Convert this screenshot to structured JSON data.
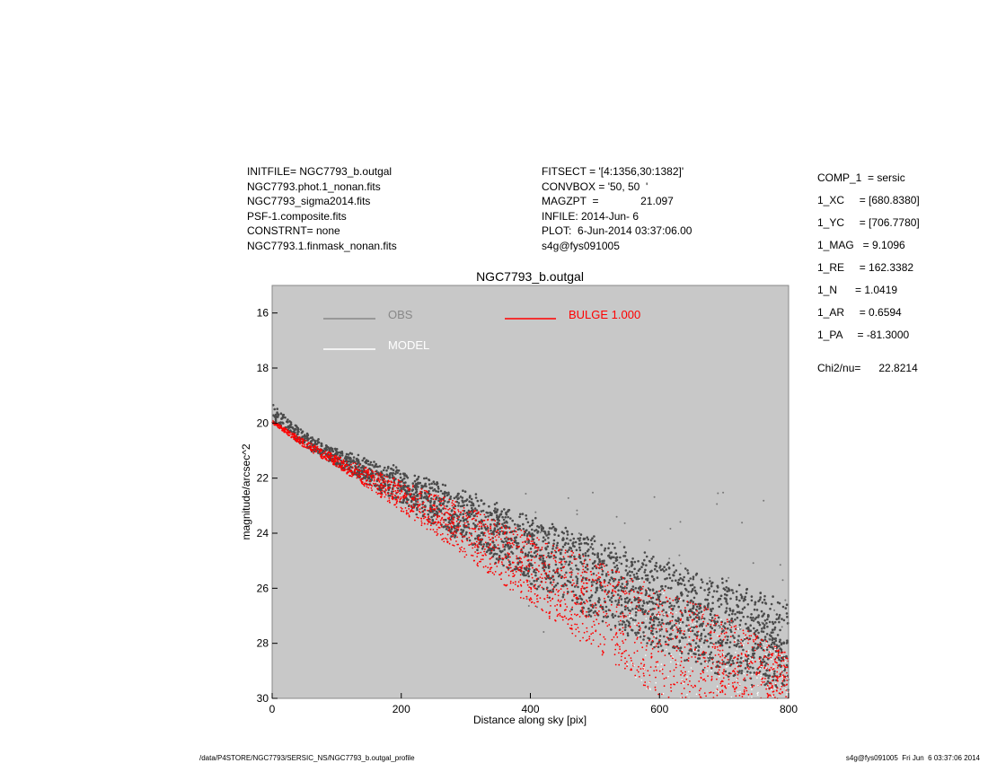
{
  "header": {
    "left_lines": [
      "INITFILE= NGC7793_b.outgal",
      "NGC7793.phot.1_nonan.fits",
      "NGC7793_sigma2014.fits",
      "PSF-1.composite.fits",
      "CONSTRNT= none",
      "NGC7793.1.finmask_nonan.fits"
    ],
    "mid_lines": [
      "FITSECT = '[4:1356,30:1382]'",
      "CONVBOX = '50, 50  '",
      "MAGZPT  =              21.097",
      "INFILE: 2014-Jun- 6",
      "PLOT:  6-Jun-2014 03:37:06.00",
      "s4g@fys091005"
    ]
  },
  "components": [
    "COMP_1  = sersic",
    "1_XC     = [680.8380]",
    "1_YC     = [706.7780]",
    "1_MAG   = 9.1096",
    "1_RE     = 162.3382",
    "1_N      = 1.0419",
    "1_AR     = 0.6594",
    "1_PA     = -81.3000"
  ],
  "chi2": "Chi2/nu=      22.8214",
  "footer": {
    "left": "/data/P4STORE/NGC7793/SERSIC_NS/NGC7793_b.outgal_profile",
    "right": "s4g@fys091005  Fri Jun  6 03:37:06 2014"
  },
  "chart_data": {
    "type": "scatter",
    "title": "NGC7793_b.outgal",
    "xlabel": "Distance along sky [pix]",
    "ylabel": "magnitude/arcsec^2",
    "xlim": [
      0,
      800
    ],
    "ylim": [
      15,
      30
    ],
    "y_inverted": true,
    "xticks": [
      0,
      200,
      400,
      600,
      800
    ],
    "xtick_labels": [
      "0",
      "200",
      "400",
      "600",
      "800"
    ],
    "yticks": [
      16,
      18,
      20,
      22,
      24,
      26,
      28,
      30
    ],
    "ytick_labels": [
      "16",
      "18",
      "20",
      "22",
      "24",
      "26",
      "28",
      "30"
    ],
    "legend": [
      {
        "label": "OBS",
        "color": "#888888"
      },
      {
        "label": "BULGE  1.000",
        "color": "#ff0000"
      },
      {
        "label": "MODEL",
        "color": "#ffffff"
      }
    ],
    "background": "#c8c8c8",
    "series": [
      {
        "name": "OBS",
        "color": "#4a4a4a",
        "envelope_x": [
          0,
          50,
          100,
          200,
          300,
          400,
          500,
          600,
          700,
          800
        ],
        "envelope_upper": [
          19.3,
          20.3,
          20.9,
          21.6,
          22.4,
          23.2,
          24.1,
          24.8,
          25.6,
          26.3
        ],
        "envelope_lower": [
          20.0,
          20.9,
          21.6,
          23.0,
          24.5,
          26.0,
          27.3,
          28.4,
          29.4,
          30.0
        ]
      },
      {
        "name": "BULGE  1.000",
        "color": "#ff0000",
        "envelope_x": [
          0,
          50,
          100,
          200,
          300,
          400,
          500,
          600,
          700,
          800
        ],
        "envelope_upper": [
          19.9,
          20.6,
          21.2,
          22.1,
          23.0,
          24.0,
          25.0,
          26.0,
          27.0,
          28.4
        ],
        "envelope_lower": [
          20.0,
          20.9,
          21.6,
          23.2,
          24.9,
          26.6,
          28.3,
          30.0,
          30.0,
          30.0
        ]
      }
    ]
  }
}
